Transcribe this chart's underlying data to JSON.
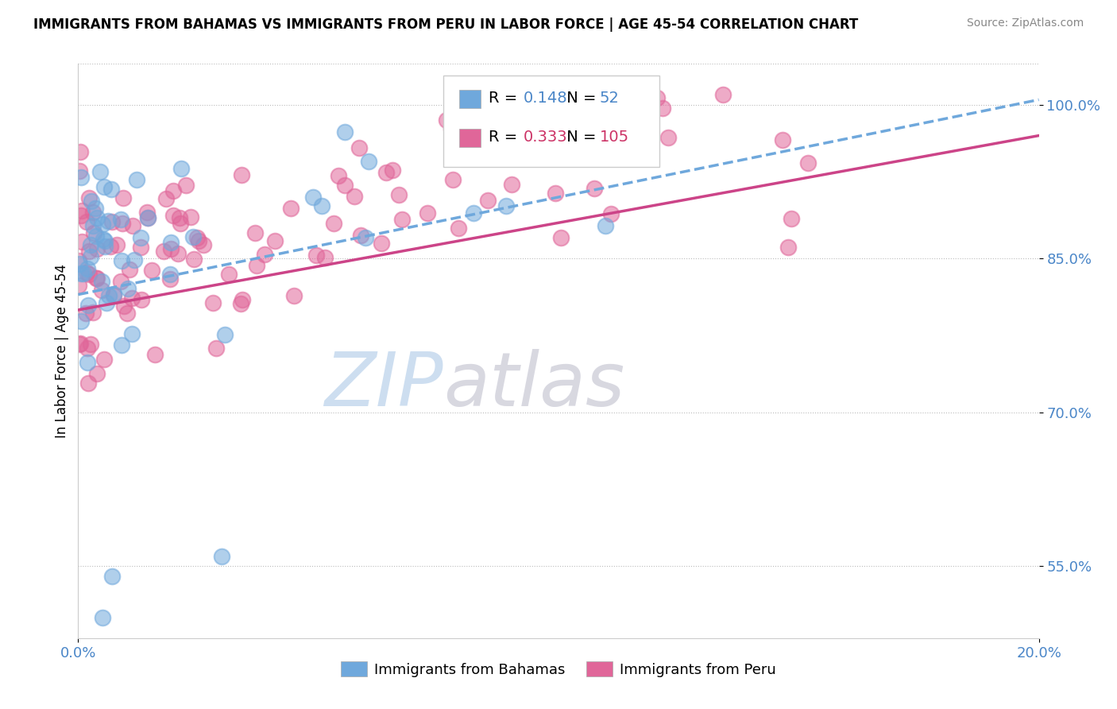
{
  "title": "IMMIGRANTS FROM BAHAMAS VS IMMIGRANTS FROM PERU IN LABOR FORCE | AGE 45-54 CORRELATION CHART",
  "source": "Source: ZipAtlas.com",
  "ylabel": "In Labor Force | Age 45-54",
  "xlim": [
    0.0,
    0.2
  ],
  "ylim": [
    0.48,
    1.04
  ],
  "yticks": [
    0.55,
    0.7,
    0.85,
    1.0
  ],
  "yticklabels": [
    "55.0%",
    "70.0%",
    "85.0%",
    "100.0%"
  ],
  "legend_label1": "Immigrants from Bahamas",
  "legend_label2": "Immigrants from Peru",
  "r1": 0.148,
  "n1": 52,
  "r2": 0.333,
  "n2": 105,
  "color1": "#6fa8dc",
  "color2": "#e06699",
  "tick_color": "#4a86c8",
  "watermark_zip_color": "#c5d8f0",
  "watermark_atlas_color": "#c0c0c8"
}
